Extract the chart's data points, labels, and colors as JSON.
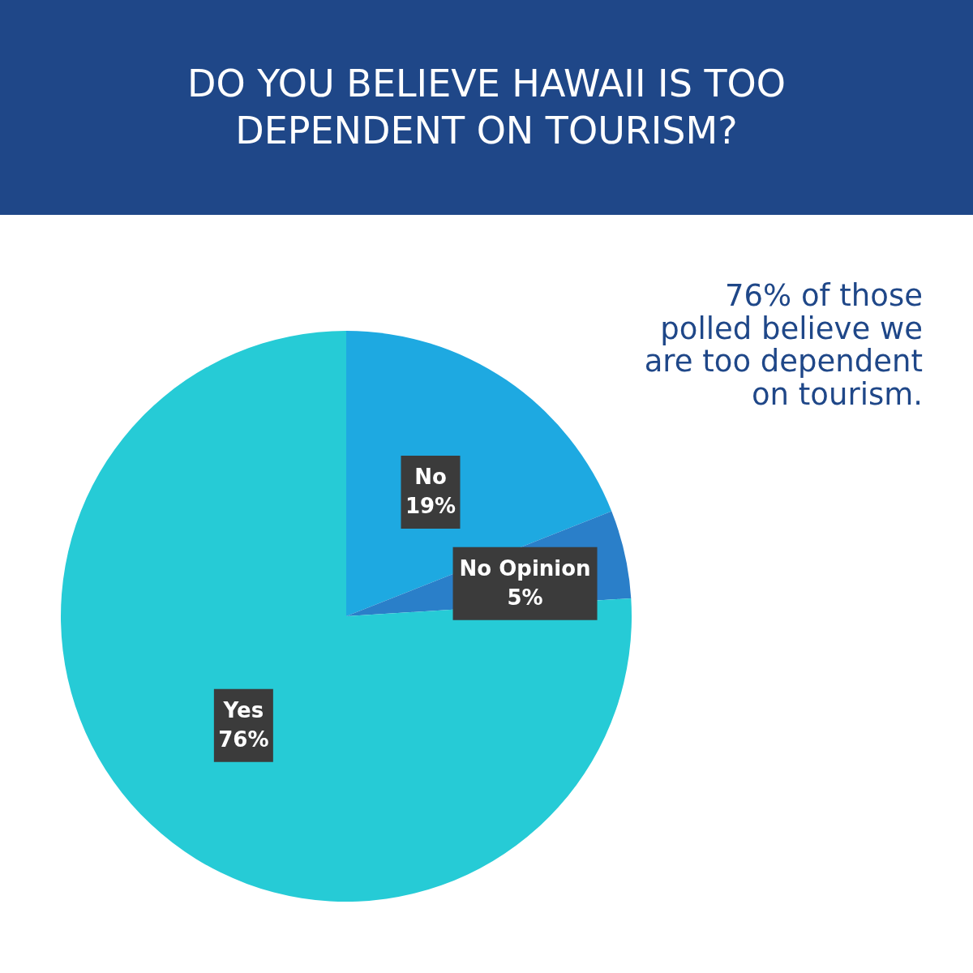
{
  "chart_data": {
    "type": "pie",
    "title": "DO YOU BELIEVE HAWAII IS TOO DEPENDENT ON TOURISM?",
    "categories": [
      "No",
      "No Opinion",
      "Yes"
    ],
    "values": [
      19,
      5,
      76
    ],
    "colors": [
      "#1ea9e1",
      "#2a7fc9",
      "#26cbd6"
    ],
    "value_labels": [
      "19%",
      "5%",
      "76%"
    ],
    "annotations": [
      "76% of those polled believe we are too dependent on tourism."
    ]
  }
}
